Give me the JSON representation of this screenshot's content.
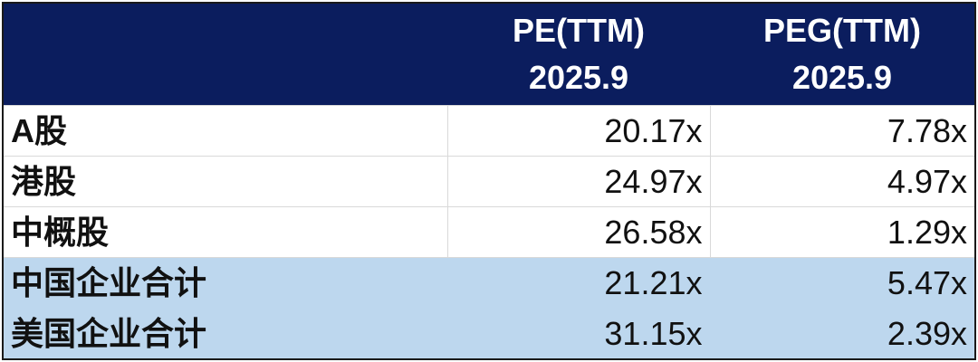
{
  "header": {
    "columns": [
      {
        "line1": "PE(TTM)",
        "line2": "2025.9"
      },
      {
        "line1": "PEG(TTM)",
        "line2": "2025.9"
      }
    ]
  },
  "table": {
    "rows": [
      [
        "A股",
        "20.17x",
        "7.78x"
      ],
      [
        "港股",
        "24.97x",
        "4.97x"
      ],
      [
        "中概股",
        "26.58x",
        "1.29x"
      ],
      [
        "中国企业合计",
        "21.21x",
        "5.47x"
      ],
      [
        "美国企业合计",
        "31.15x",
        "2.39x"
      ]
    ]
  }
}
